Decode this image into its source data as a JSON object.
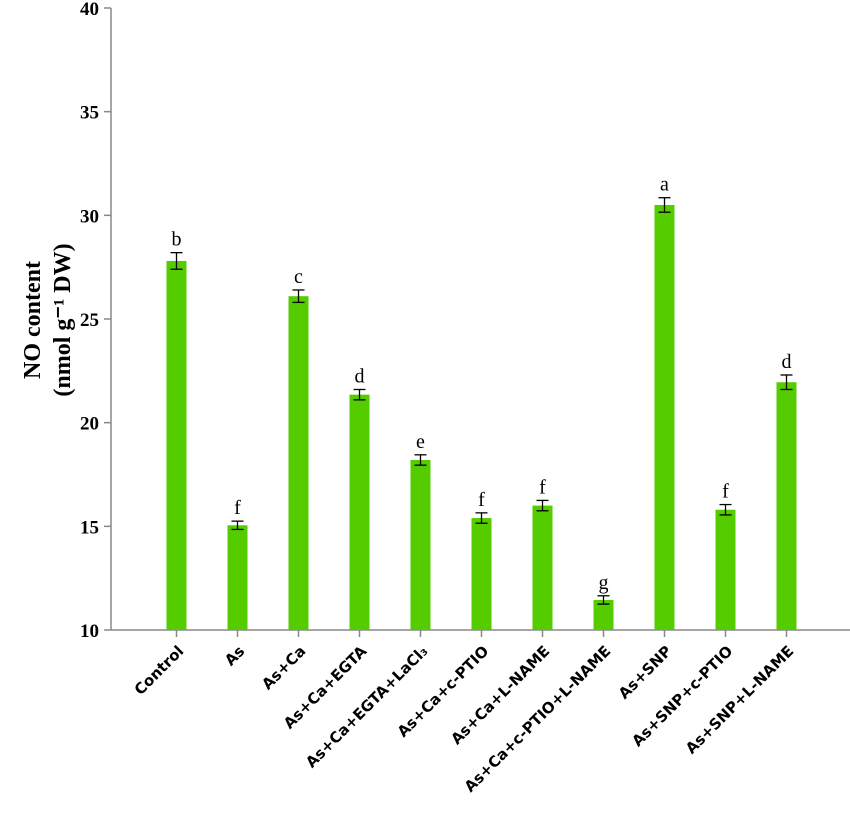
{
  "chart_data": {
    "type": "bar",
    "y_label": [
      "NO content",
      "(nmol g⁻¹ DW)"
    ],
    "categories": [
      "Control",
      "As",
      "As+Ca",
      "As+Ca+EGTA",
      "As+Ca+EGTA+LaCl₃",
      "As+Ca+c-PTIO",
      "As+Ca+L-NAME",
      "As+Ca+c-PTIO+L-NAME",
      "As+SNP",
      "As+SNP+c-PTIO",
      "As+SNP+L-NAME"
    ],
    "values": [
      27.8,
      15.05,
      26.1,
      21.35,
      18.2,
      15.4,
      16.0,
      11.45,
      30.5,
      15.8,
      21.95
    ],
    "errors": [
      0.4,
      0.2,
      0.3,
      0.25,
      0.25,
      0.25,
      0.25,
      0.2,
      0.35,
      0.25,
      0.35
    ],
    "annotations": [
      "b",
      "f",
      "c",
      "d",
      "e",
      "f",
      "f",
      "g",
      "a",
      "f",
      "d"
    ],
    "color": "#55cc00",
    "ylim": [
      10,
      40
    ],
    "yticks": [
      10,
      15,
      20,
      25,
      30,
      35,
      40
    ]
  }
}
